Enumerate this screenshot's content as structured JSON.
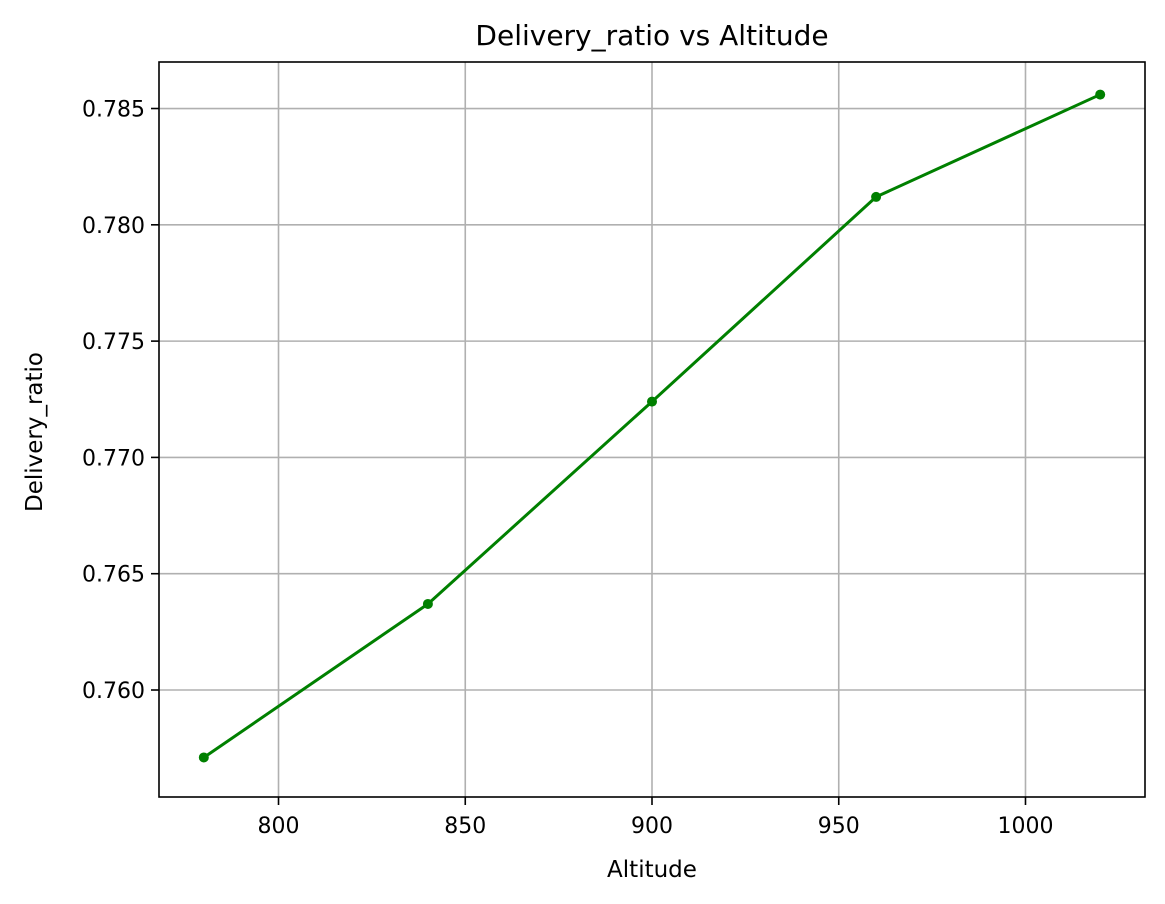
{
  "chart_data": {
    "type": "line",
    "title": "Delivery_ratio vs Altitude",
    "xlabel": "Altitude",
    "ylabel": "Delivery_ratio",
    "x": [
      780,
      840,
      900,
      960,
      1020
    ],
    "series": [
      {
        "values": [
          0.7571,
          0.7637,
          0.7724,
          0.7812,
          0.7856
        ],
        "color": "#008000",
        "marker": "circle"
      }
    ],
    "xlim": [
      768,
      1032
    ],
    "ylim": [
      0.7554,
      0.787
    ],
    "xticks": [
      800,
      850,
      900,
      950,
      1000
    ],
    "yticks": [
      0.76,
      0.765,
      0.77,
      0.775,
      0.78,
      0.785
    ],
    "xtick_labels": [
      "800",
      "850",
      "900",
      "950",
      "1000"
    ],
    "ytick_labels": [
      "0.760",
      "0.765",
      "0.770",
      "0.775",
      "0.780",
      "0.785"
    ],
    "grid": true,
    "grid_color": "#b0b0b0",
    "legend": "none"
  }
}
